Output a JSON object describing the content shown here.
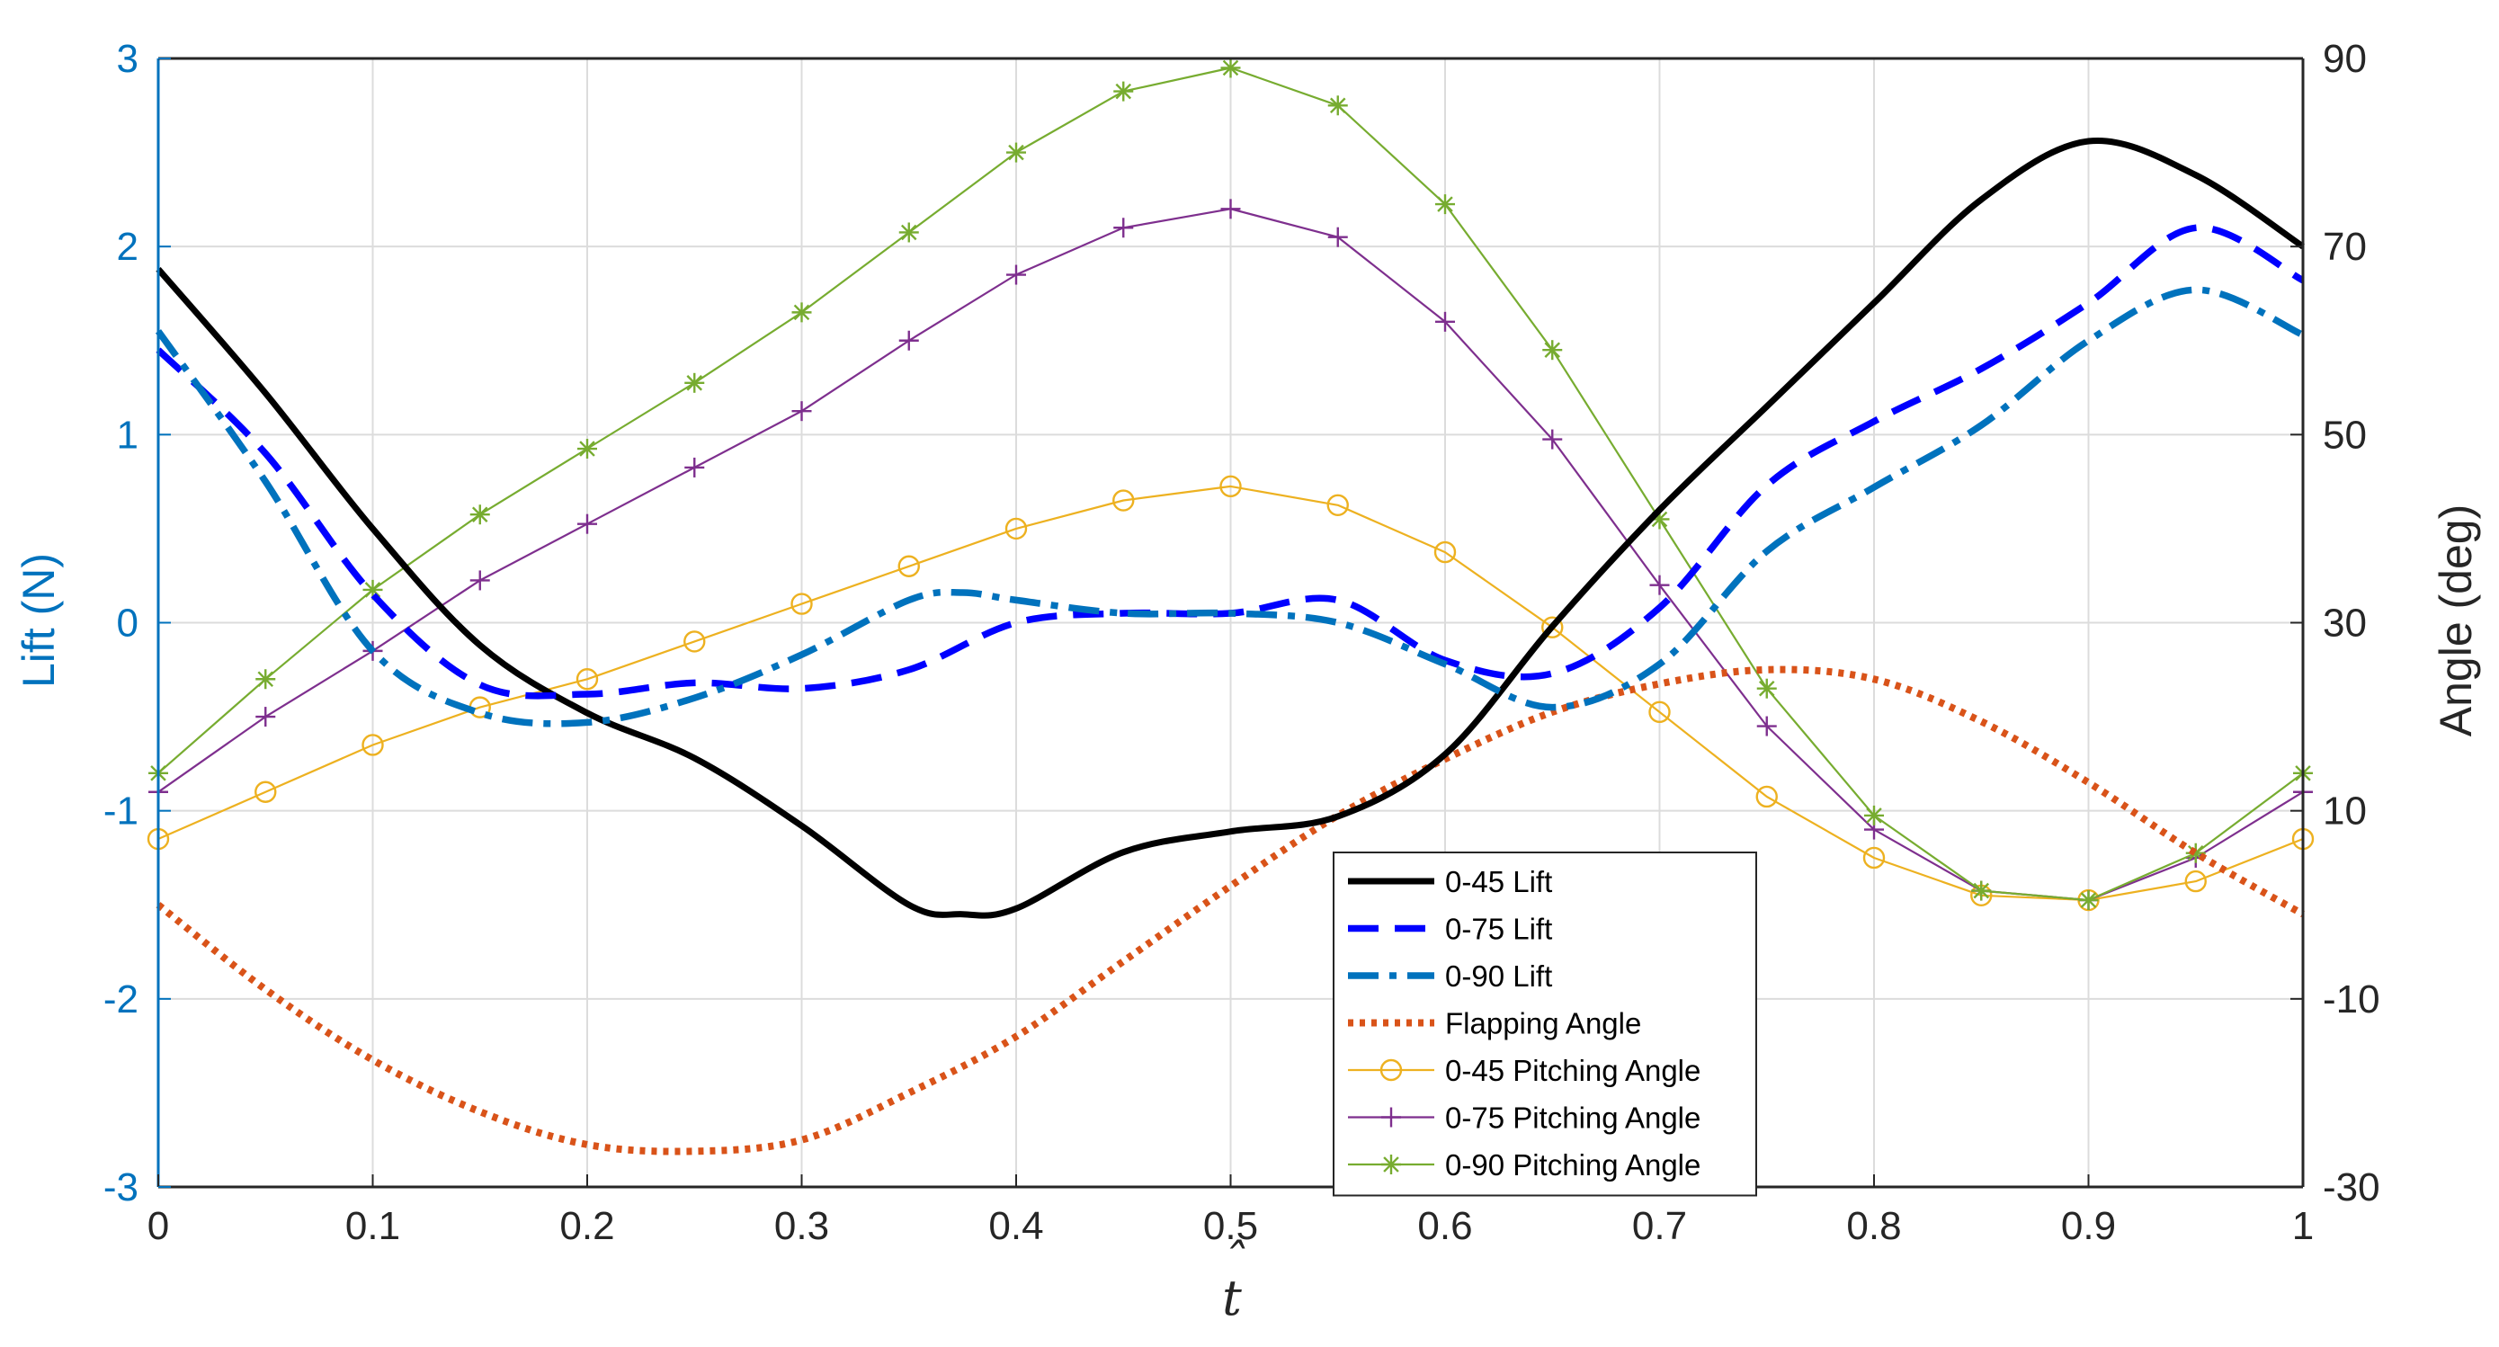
{
  "chart_data": {
    "type": "line",
    "title": "",
    "xlabel": "t̂",
    "xlabel_base": "t",
    "xlabel_hat": "ˆ",
    "ylabel_left": "Lift (N)",
    "ylabel_right": "Angle (deg)",
    "xlim": [
      0,
      1
    ],
    "ylim_left": [
      -3,
      3
    ],
    "ylim_right": [
      -30,
      90
    ],
    "x_ticks": [
      "0",
      "0.1",
      "0.2",
      "0.3",
      "0.4",
      "0.5",
      "0.6",
      "0.7",
      "0.8",
      "0.9",
      "1"
    ],
    "y_ticks_left": [
      "3",
      "2",
      "1",
      "0",
      "-1",
      "-2",
      "-3"
    ],
    "y_ticks_right": [
      "90",
      "70",
      "50",
      "30",
      "10",
      "-10",
      "-30"
    ],
    "grid": true,
    "legend_position": "lower-center-right",
    "series": [
      {
        "name": "0-45 Lift",
        "axis": "left",
        "color": "#000000",
        "style": "solid",
        "marker": "none",
        "x": [
          0,
          0.05,
          0.1,
          0.15,
          0.2,
          0.25,
          0.3,
          0.35,
          0.375,
          0.4,
          0.45,
          0.5,
          0.55,
          0.6,
          0.65,
          0.7,
          0.75,
          0.8,
          0.85,
          0.9,
          0.95,
          1
        ],
        "values": [
          1.88,
          1.22,
          0.5,
          -0.12,
          -0.48,
          -0.72,
          -1.08,
          -1.5,
          -1.55,
          -1.52,
          -1.22,
          -1.11,
          -1.03,
          -0.7,
          -0.02,
          0.6,
          1.15,
          1.7,
          2.25,
          2.56,
          2.38,
          2.0
        ]
      },
      {
        "name": "0-75 Lift",
        "axis": "left",
        "color": "#0000FF",
        "style": "dash",
        "marker": "none",
        "x": [
          0,
          0.05,
          0.1,
          0.15,
          0.2,
          0.25,
          0.3,
          0.35,
          0.4,
          0.45,
          0.5,
          0.55,
          0.6,
          0.65,
          0.7,
          0.75,
          0.8,
          0.85,
          0.9,
          0.95,
          1
        ],
        "values": [
          1.45,
          0.9,
          0.15,
          -0.33,
          -0.38,
          -0.32,
          -0.35,
          -0.25,
          0.0,
          0.05,
          0.05,
          0.12,
          -0.2,
          -0.27,
          0.08,
          0.73,
          1.07,
          1.35,
          1.7,
          2.1,
          1.82
        ]
      },
      {
        "name": "0-90 Lift",
        "axis": "left",
        "color": "#0072BD",
        "style": "dashdot",
        "marker": "none",
        "x": [
          0,
          0.05,
          0.1,
          0.15,
          0.2,
          0.25,
          0.3,
          0.35,
          0.375,
          0.4,
          0.45,
          0.5,
          0.55,
          0.6,
          0.65,
          0.7,
          0.75,
          0.8,
          0.85,
          0.9,
          0.95,
          1
        ],
        "values": [
          1.55,
          0.75,
          -0.15,
          -0.48,
          -0.53,
          -0.4,
          -0.17,
          0.12,
          0.16,
          0.12,
          0.05,
          0.05,
          0.0,
          -0.22,
          -0.45,
          -0.22,
          0.38,
          0.72,
          1.05,
          1.5,
          1.77,
          1.53
        ]
      },
      {
        "name": "Flapping Angle",
        "axis": "right",
        "color": "#D95319",
        "style": "dotted",
        "marker": "none",
        "x": [
          0,
          0.05,
          0.1,
          0.15,
          0.2,
          0.25,
          0.3,
          0.35,
          0.4,
          0.45,
          0.5,
          0.55,
          0.6,
          0.65,
          0.7,
          0.75,
          0.8,
          0.85,
          0.9,
          0.95,
          1
        ],
        "values": [
          0,
          -9,
          -16.5,
          -22,
          -25.5,
          -26.2,
          -25,
          -20,
          -14,
          -6,
          2,
          9.5,
          15.5,
          20.5,
          23.5,
          25,
          24,
          19.5,
          13,
          5.5,
          -1
        ]
      },
      {
        "name": "0-45 Pitching Angle",
        "axis": "right",
        "color": "#EDB120",
        "style": "solid",
        "marker": "circle",
        "x": [
          0,
          0.05,
          0.1,
          0.15,
          0.2,
          0.25,
          0.3,
          0.35,
          0.4,
          0.45,
          0.5,
          0.55,
          0.6,
          0.65,
          0.7,
          0.75,
          0.8,
          0.85,
          0.9,
          0.95,
          1
        ],
        "values": [
          7,
          12,
          17,
          21,
          24,
          28,
          32,
          36,
          40,
          43,
          44.5,
          42.5,
          37.5,
          29.5,
          20.5,
          11.5,
          5,
          1,
          0.5,
          2.5,
          7
        ]
      },
      {
        "name": "0-75 Pitching Angle",
        "axis": "right",
        "color": "#7E2F8E",
        "style": "solid",
        "marker": "plus",
        "x": [
          0,
          0.05,
          0.1,
          0.15,
          0.2,
          0.25,
          0.3,
          0.35,
          0.4,
          0.45,
          0.5,
          0.55,
          0.6,
          0.65,
          0.7,
          0.75,
          0.8,
          0.85,
          0.9,
          0.95,
          1
        ],
        "values": [
          12,
          20,
          27,
          34.5,
          40.5,
          46.5,
          52.5,
          60,
          67,
          72,
          74,
          71,
          62,
          49.5,
          34,
          19,
          8,
          1.5,
          0.5,
          5,
          12
        ]
      },
      {
        "name": "0-90 Pitching Angle",
        "axis": "right",
        "color": "#77AC30",
        "style": "solid",
        "marker": "asterisk",
        "x": [
          0,
          0.05,
          0.1,
          0.15,
          0.2,
          0.25,
          0.3,
          0.35,
          0.4,
          0.45,
          0.5,
          0.55,
          0.6,
          0.65,
          0.7,
          0.75,
          0.8,
          0.85,
          0.9,
          0.95,
          1
        ],
        "values": [
          14,
          24,
          33.5,
          41.5,
          48.5,
          55.5,
          63,
          71.5,
          80,
          86.5,
          89,
          85,
          74.5,
          59,
          41,
          23,
          9.5,
          1.5,
          0.5,
          5.5,
          14
        ]
      }
    ]
  }
}
